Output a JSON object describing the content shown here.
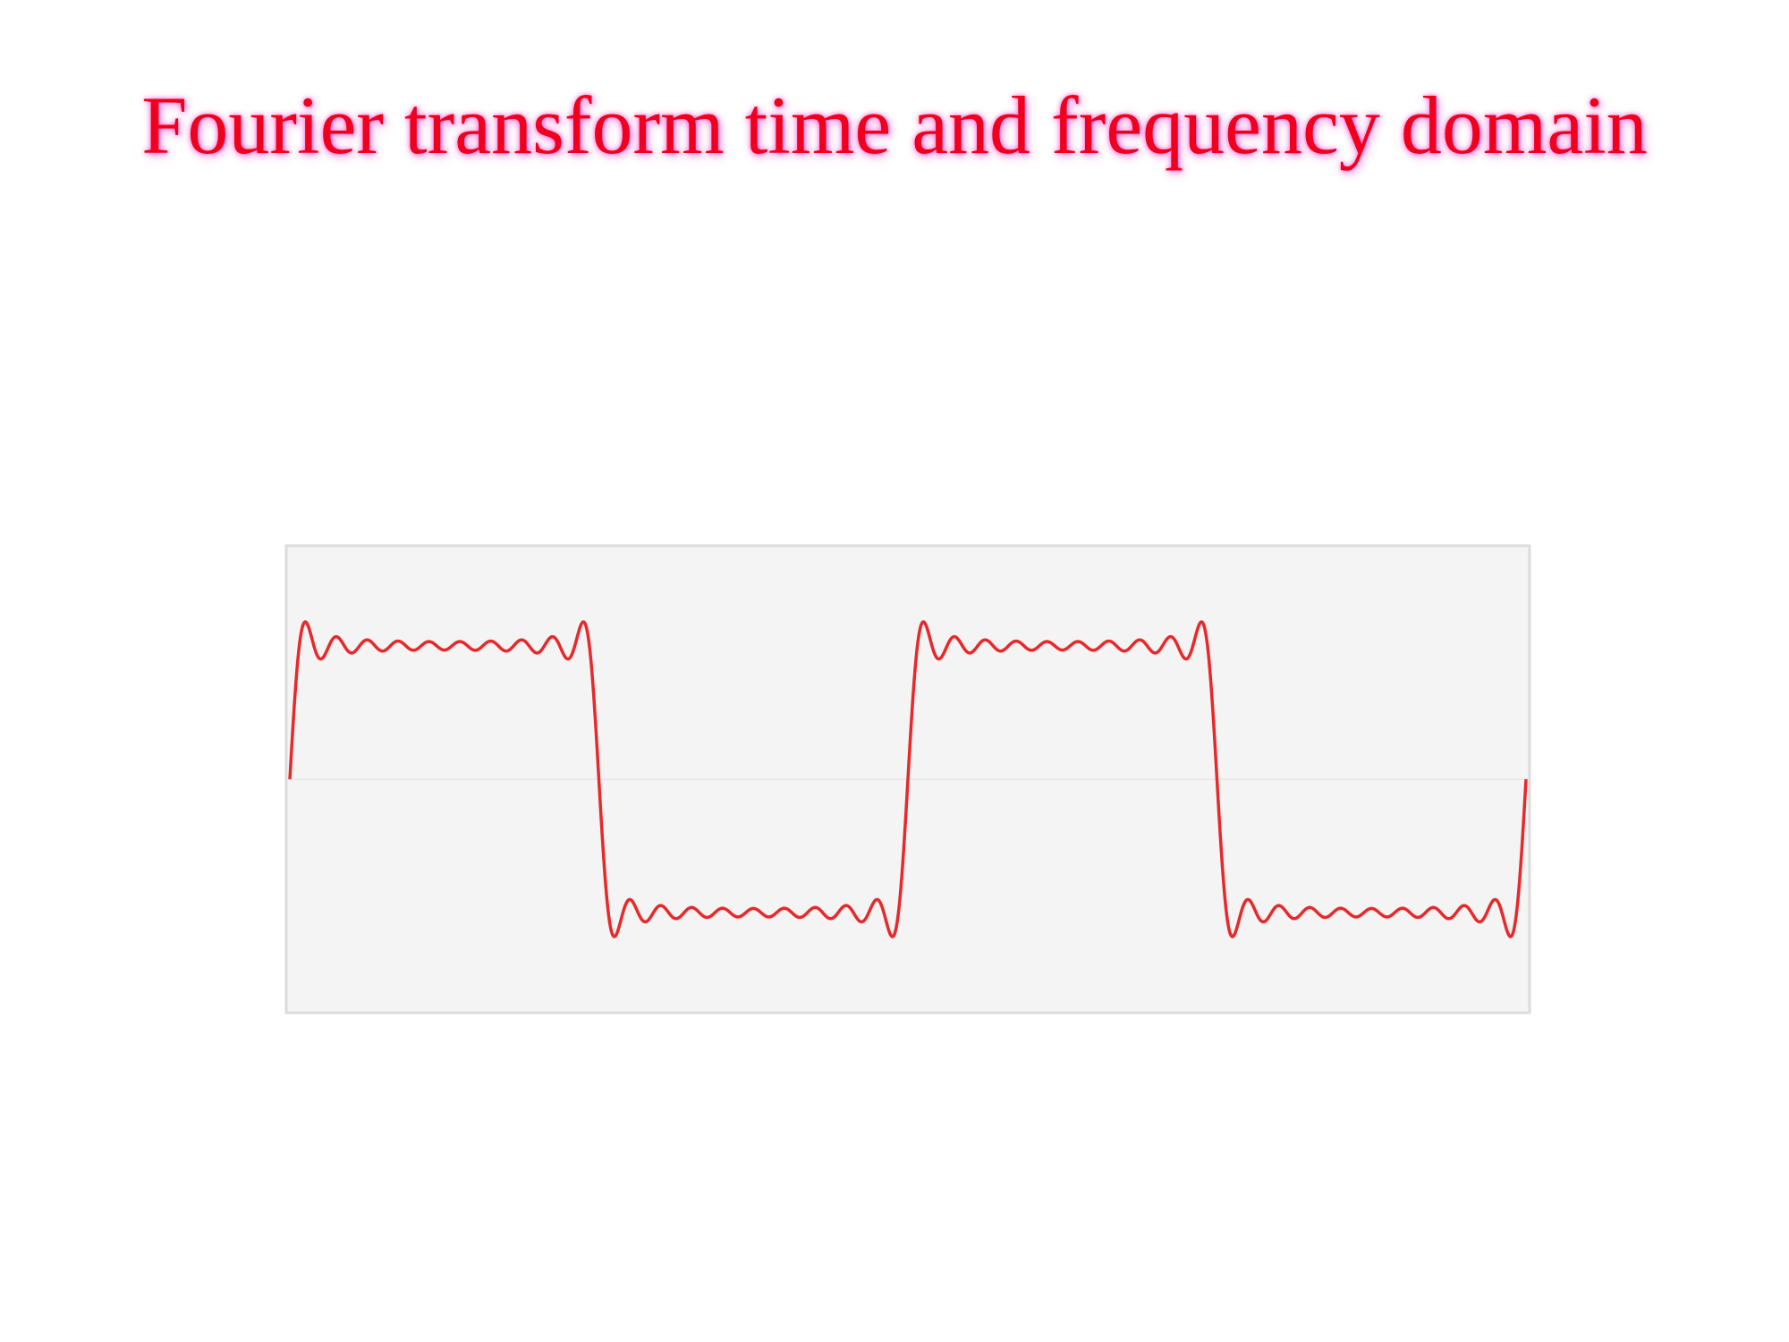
{
  "slide": {
    "title": "Fourier transform time and frequency domain"
  },
  "chart_data": {
    "type": "line",
    "description_of_signal": "",
    "series": [
      {
        "color": "#e8282a",
        "harmonics": [
          1,
          3,
          5,
          7,
          9,
          11,
          13,
          15,
          17,
          19
        ],
        "periods": 2,
        "amplitude": 1
      }
    ],
    "grid": true,
    "ylim": [
      -1.75,
      1.75
    ]
  },
  "colors": {
    "title": "#f0001c",
    "plot_background": "#f4f4f4",
    "plot_border": "#dcdcdc",
    "zero_line": "#e9e9e9",
    "trace": "#e8282a"
  }
}
